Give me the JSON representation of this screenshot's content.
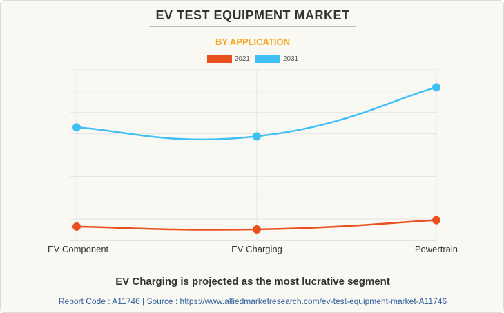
{
  "header": {
    "title": "EV TEST EQUIPMENT MARKET",
    "subtitle": "BY APPLICATION"
  },
  "legend": [
    {
      "label": "2021",
      "color": "#e8501e"
    },
    {
      "label": "2031",
      "color": "#3ec0f4"
    }
  ],
  "chart_data": {
    "type": "line",
    "title": "EV TEST EQUIPMENT MARKET",
    "subtitle": "BY APPLICATION",
    "categories": [
      "EV Component",
      "EV Charging",
      "Powertrain"
    ],
    "ylim": [
      0,
      8
    ],
    "grid": true,
    "legend_position": "top-center",
    "series": [
      {
        "name": "2021",
        "color": "#e8501e",
        "values": [
          0.65,
          0.52,
          0.95
        ]
      },
      {
        "name": "2031",
        "color": "#3ec0f4",
        "values": [
          5.3,
          4.88,
          7.18
        ]
      }
    ]
  },
  "footer": {
    "headline": "EV Charging is projected as the most lucrative segment",
    "source": "Report Code : A11746  |  Source : https://www.alliedmarketresearch.com/ev-test-equipment-market-A11746"
  }
}
